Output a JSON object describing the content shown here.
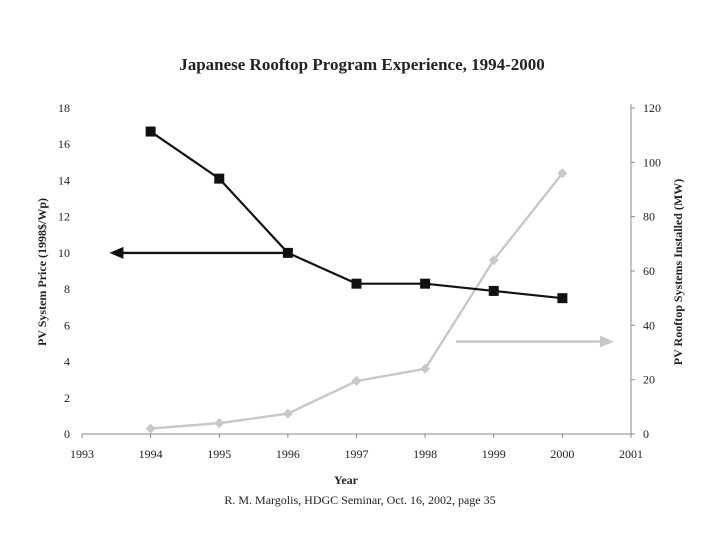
{
  "footer": "R. M. Margolis, HDGC Seminar, Oct. 16, 2002, page 35",
  "colors": {
    "price": "#111111",
    "installed": "#c8c8c8"
  },
  "chart_data": {
    "type": "line",
    "title": "Japanese Rooftop Program Experience, 1994-2000",
    "xlabel": "Year",
    "ylabel": "PV System Price (1998$/Wp)",
    "y2label": "PV Rooftop Systems Installed (MW)",
    "xlim": [
      1993,
      2001
    ],
    "ylim": [
      0,
      18
    ],
    "y2lim": [
      0,
      120
    ],
    "x_ticks": [
      "1993",
      "1994",
      "1995",
      "1996",
      "1997",
      "1998",
      "1999",
      "2000",
      "2001"
    ],
    "y_ticks": [
      "0",
      "2",
      "4",
      "6",
      "8",
      "10",
      "12",
      "14",
      "16",
      "18"
    ],
    "y2_ticks": [
      "0",
      "20",
      "40",
      "60",
      "80",
      "100",
      "120"
    ],
    "series": [
      {
        "name": "PV System Price (1998$/Wp)",
        "axis": "left",
        "marker": "square",
        "x": [
          1994,
          1995,
          1996,
          1997,
          1998,
          1999,
          2000
        ],
        "values": [
          16.7,
          14.1,
          10.0,
          8.3,
          8.3,
          7.9,
          7.5
        ]
      },
      {
        "name": "PV Rooftop Systems Installed (MW)",
        "axis": "right",
        "marker": "diamond",
        "x": [
          1994,
          1995,
          1996,
          1997,
          1998,
          1999,
          2000
        ],
        "values": [
          2,
          4,
          7.5,
          19.5,
          24,
          64,
          96
        ]
      }
    ],
    "annotations": [
      {
        "type": "arrow",
        "direction": "left",
        "series": "PV System Price (1998$/Wp)",
        "at_value": 10.0,
        "from_x": 1996,
        "to_x": 1993.4
      },
      {
        "type": "arrow",
        "direction": "right",
        "series": "PV Rooftop Systems Installed (MW)",
        "at_value": 34,
        "from_x": 1998.45,
        "to_x": 2000.75
      }
    ]
  }
}
